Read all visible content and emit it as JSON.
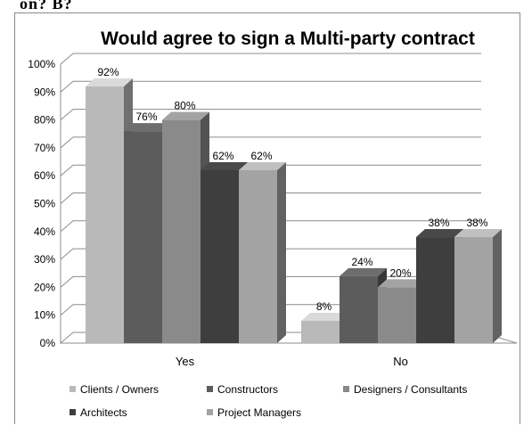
{
  "header_fragment": "on? B?",
  "chart_data": {
    "type": "bar",
    "title": "Would agree to sign a Multi-party contract",
    "xlabel": "",
    "ylabel": "",
    "categories": [
      "Yes",
      "No"
    ],
    "ylim": [
      0,
      100
    ],
    "yticks": [
      "0%",
      "10%",
      "20%",
      "30%",
      "40%",
      "50%",
      "60%",
      "70%",
      "80%",
      "90%",
      "100%"
    ],
    "grid": true,
    "legend_position": "bottom",
    "series": [
      {
        "name": "Clients / Owners",
        "values": [
          92,
          8
        ],
        "labels": [
          "92%",
          "8%"
        ],
        "color": "#b9b9b9"
      },
      {
        "name": "Constructors",
        "values": [
          76,
          24
        ],
        "labels": [
          "76%",
          "24%"
        ],
        "color": "#5c5c5c"
      },
      {
        "name": "Designers / Consultants",
        "values": [
          80,
          20
        ],
        "labels": [
          "80%",
          "20%"
        ],
        "color": "#8a8a8a"
      },
      {
        "name": "Architects",
        "values": [
          62,
          38
        ],
        "labels": [
          "62%",
          "38%"
        ],
        "color": "#3e3e3e"
      },
      {
        "name": "Project Managers",
        "values": [
          62,
          38
        ],
        "labels": [
          "62%",
          "38%"
        ],
        "color": "#a3a3a3"
      }
    ]
  }
}
